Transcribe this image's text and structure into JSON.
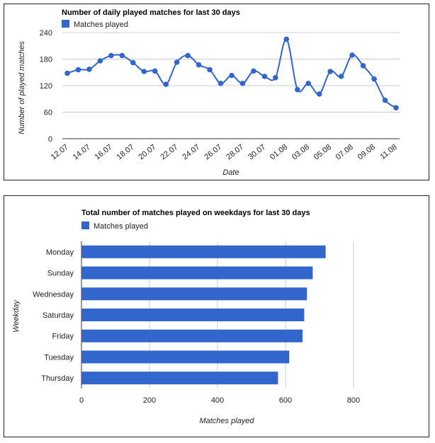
{
  "chart_data": [
    {
      "type": "line",
      "title": "Number of daily played matches for last 30 days",
      "legend": "Matches played",
      "legend_position": "top-left",
      "xlabel": "Date",
      "ylabel": "Number of played matches",
      "ylim": [
        0,
        240
      ],
      "yticks": [
        "0",
        "60",
        "120",
        "180",
        "240"
      ],
      "xtick_labels": [
        "12.07",
        "14.07",
        "16.07",
        "18.07",
        "20.07",
        "22.07",
        "24.07",
        "26.07",
        "28.07",
        "30.07",
        "01.08",
        "03.08",
        "05.08",
        "07.08",
        "09.08",
        "11.08"
      ],
      "grid": true,
      "color": "#3366cc",
      "series": [
        {
          "name": "Matches played",
          "values": [
            148,
            156,
            157,
            176,
            188,
            188,
            172,
            152,
            153,
            123,
            173,
            188,
            167,
            156,
            125,
            143,
            125,
            153,
            141,
            138,
            225,
            111,
            125,
            101,
            152,
            141,
            189,
            165,
            135,
            87,
            70
          ]
        }
      ]
    },
    {
      "type": "bar",
      "orientation": "horizontal",
      "title": "Total number of matches played on weekdays for last 30 days",
      "legend": "Matches played",
      "legend_position": "top-left",
      "xlabel": "Matches played",
      "ylabel": "Weekday",
      "xlim": [
        0,
        950
      ],
      "xticks": [
        "0",
        "200",
        "400",
        "600",
        "800"
      ],
      "grid": true,
      "color": "#3366cc",
      "categories": [
        "Monday",
        "Sunday",
        "Wednesday",
        "Saturday",
        "Friday",
        "Tuesday",
        "Thursday"
      ],
      "series": [
        {
          "name": "Matches played",
          "values": [
            718,
            680,
            663,
            655,
            650,
            611,
            578
          ]
        }
      ]
    }
  ]
}
